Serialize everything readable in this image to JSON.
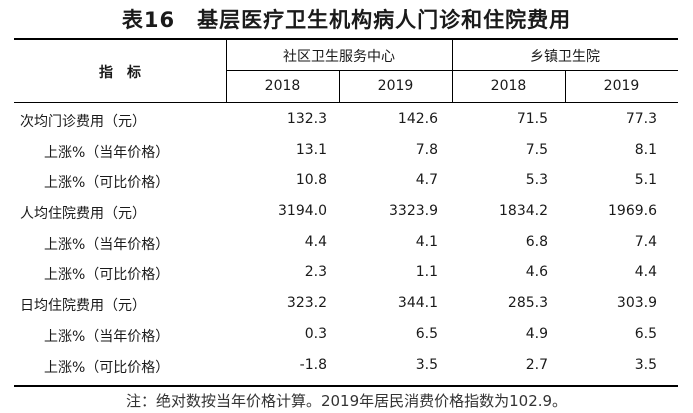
{
  "title": "表16　基层医疗卫生机构病人门诊和住院费用",
  "header": {
    "indicator": "指　标",
    "group1": "社区卫生服务中心",
    "group2": "乡镇卫生院",
    "years": [
      "2018",
      "2019",
      "2018",
      "2019"
    ]
  },
  "rows": [
    {
      "label": "次均门诊费用（元）",
      "type": "main",
      "values": [
        "132.3",
        "142.6",
        "71.5",
        "77.3"
      ]
    },
    {
      "label": "上涨%（当年价格）",
      "type": "sub",
      "values": [
        "13.1",
        "7.8",
        "7.5",
        "8.1"
      ]
    },
    {
      "label": "上涨%（可比价格）",
      "type": "sub",
      "values": [
        "10.8",
        "4.7",
        "5.3",
        "5.1"
      ]
    },
    {
      "label": "人均住院费用（元）",
      "type": "main",
      "values": [
        "3194.0",
        "3323.9",
        "1834.2",
        "1969.6"
      ]
    },
    {
      "label": "上涨%（当年价格）",
      "type": "sub",
      "values": [
        "4.4",
        "4.1",
        "6.8",
        "7.4"
      ]
    },
    {
      "label": "上涨%（可比价格）",
      "type": "sub",
      "values": [
        "2.3",
        "1.1",
        "4.6",
        "4.4"
      ]
    },
    {
      "label": "日均住院费用（元）",
      "type": "main",
      "values": [
        "323.2",
        "344.1",
        "285.3",
        "303.9"
      ]
    },
    {
      "label": "上涨%（当年价格）",
      "type": "sub",
      "values": [
        "0.3",
        "6.5",
        "4.9",
        "6.5"
      ]
    },
    {
      "label": "上涨%（可比价格）",
      "type": "sub",
      "values": [
        "-1.8",
        "3.5",
        "2.7",
        "3.5"
      ]
    }
  ],
  "note": "注：绝对数按当年价格计算。2019年居民消费价格指数为102.9。"
}
